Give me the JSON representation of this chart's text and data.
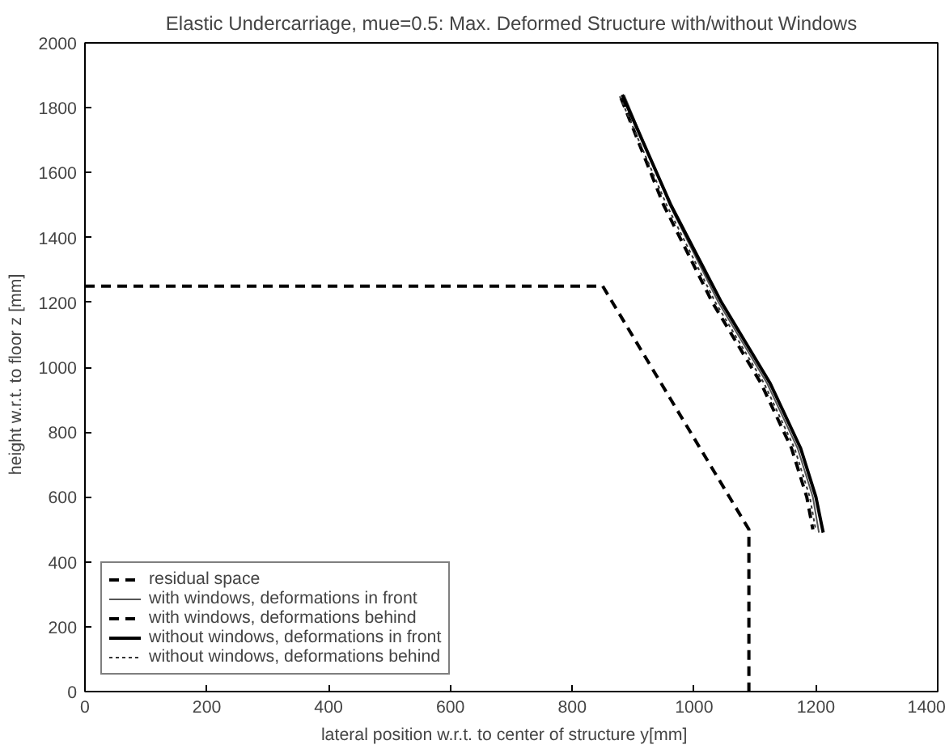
{
  "chart_data": {
    "type": "line",
    "title": "Elastic Undercarriage, mue=0.5: Max. Deformed Structure with/without Windows",
    "xlabel": "lateral position w.r.t. to center of structure    y[mm]",
    "ylabel": "height w.r.t. to floor    z [mm]",
    "xlim": [
      0,
      1400
    ],
    "ylim": [
      0,
      2000
    ],
    "xticks": [
      0,
      200,
      400,
      600,
      800,
      1000,
      1200,
      1400
    ],
    "yticks": [
      0,
      200,
      400,
      600,
      800,
      1000,
      1200,
      1400,
      1600,
      1800,
      2000
    ],
    "grid": false,
    "legend": "bottom left",
    "series": [
      {
        "name": "residual space",
        "color": "#000000",
        "line_style": "dashed",
        "x": [
          0,
          850,
          1090,
          1090
        ],
        "values": [
          1250,
          1250,
          500,
          0
        ]
      },
      {
        "name": "with windows, deformations in front",
        "color": "#555555",
        "line_style": "solid",
        "x": [
          885,
          960,
          1040,
          1120,
          1170,
          1195,
          1205
        ],
        "values": [
          1840,
          1500,
          1200,
          950,
          750,
          600,
          490
        ]
      },
      {
        "name": "with windows, deformations behind",
        "color": "#000000",
        "line_style": "dashed",
        "x": [
          880,
          950,
          1030,
          1110,
          1160,
          1185,
          1195
        ],
        "values": [
          1830,
          1500,
          1200,
          950,
          750,
          600,
          500
        ]
      },
      {
        "name": "without windows, deformations in front",
        "color": "#000000",
        "line_style": "solid",
        "x": [
          882,
          962,
          1045,
          1125,
          1175,
          1200,
          1212
        ],
        "values": [
          1840,
          1500,
          1200,
          950,
          750,
          600,
          490
        ]
      },
      {
        "name": "without windows, deformations behind",
        "color": "#333333",
        "line_style": "dotted",
        "x": [
          878,
          955,
          1035,
          1115,
          1165,
          1190,
          1200
        ],
        "values": [
          1835,
          1500,
          1200,
          950,
          750,
          600,
          495
        ]
      }
    ]
  }
}
